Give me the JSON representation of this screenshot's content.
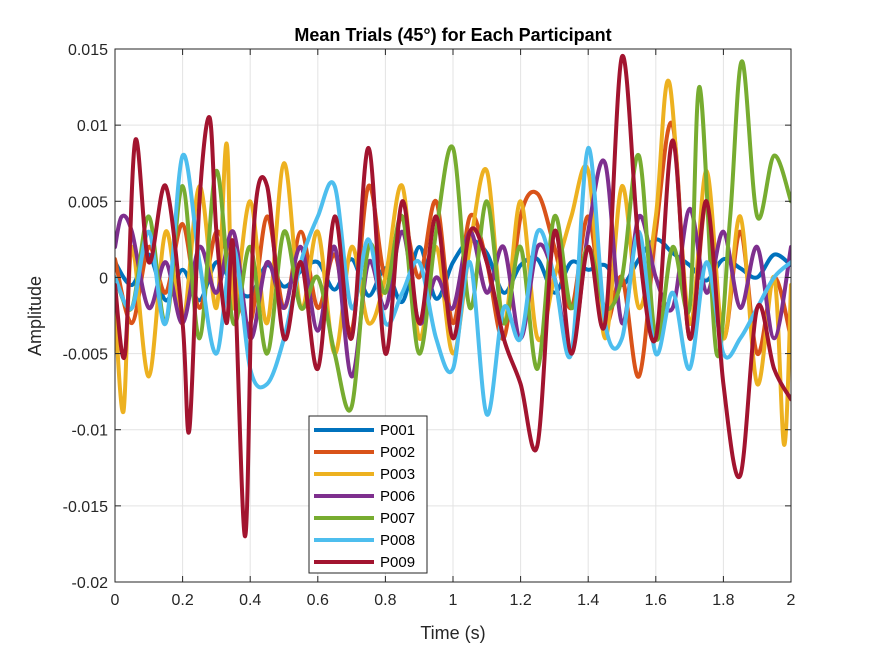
{
  "chart_data": {
    "type": "line",
    "title": "Mean Trials (45°) for Each Participant",
    "xlabel": "Time (s)",
    "ylabel": "Amplitude",
    "xlim": [
      0,
      2
    ],
    "ylim": [
      -0.02,
      0.015
    ],
    "xticks": [
      "0",
      "0.2",
      "0.4",
      "0.6",
      "0.8",
      "1",
      "1.2",
      "1.4",
      "1.6",
      "1.8",
      "2"
    ],
    "yticks": [
      "-0.02",
      "-0.015",
      "-0.01",
      "-0.005",
      "0",
      "0.005",
      "0.01",
      "0.015"
    ],
    "grid": true,
    "legend_position": "bottom-left",
    "series": [
      {
        "name": "P001",
        "color": "#0072BD",
        "points": [
          [
            0,
            0.001
          ],
          [
            0.05,
            -0.0005
          ],
          [
            0.1,
            0.0015
          ],
          [
            0.15,
            -0.0015
          ],
          [
            0.2,
            0.0005
          ],
          [
            0.25,
            -0.0015
          ],
          [
            0.3,
            0.001
          ],
          [
            0.35,
            -0.0005
          ],
          [
            0.4,
            -0.0012
          ],
          [
            0.45,
            0.0008
          ],
          [
            0.5,
            -0.0006
          ],
          [
            0.55,
            0.0004
          ],
          [
            0.6,
            0.001
          ],
          [
            0.65,
            -0.0008
          ],
          [
            0.7,
            0.0012
          ],
          [
            0.75,
            -0.0012
          ],
          [
            0.8,
            0.0006
          ],
          [
            0.85,
            -0.0016
          ],
          [
            0.9,
            0.002
          ],
          [
            0.95,
            -0.0014
          ],
          [
            1.0,
            0.001
          ],
          [
            1.05,
            0.0024
          ],
          [
            1.1,
            0.0016
          ],
          [
            1.15,
            -0.001
          ],
          [
            1.2,
            0.0008
          ],
          [
            1.25,
            0.0012
          ],
          [
            1.3,
            -0.001
          ],
          [
            1.35,
            0.001
          ],
          [
            1.4,
            0.0005
          ],
          [
            1.45,
            0.0008
          ],
          [
            1.5,
            -0.0005
          ],
          [
            1.55,
            0.0012
          ],
          [
            1.6,
            0.0025
          ],
          [
            1.65,
            0.0016
          ],
          [
            1.7,
            0.0008
          ],
          [
            1.75,
            -0.0002
          ],
          [
            1.8,
            0.0012
          ],
          [
            1.85,
            0.0006
          ],
          [
            1.9,
            0.0
          ],
          [
            1.95,
            0.0015
          ],
          [
            2.0,
            0.0008
          ]
        ]
      },
      {
        "name": "P002",
        "color": "#D95319",
        "points": [
          [
            0,
            0.0012
          ],
          [
            0.05,
            -0.003
          ],
          [
            0.1,
            0.002
          ],
          [
            0.15,
            -0.001
          ],
          [
            0.2,
            0.0035
          ],
          [
            0.25,
            -0.002
          ],
          [
            0.3,
            0.003
          ],
          [
            0.35,
            0.0
          ],
          [
            0.4,
            -0.003
          ],
          [
            0.45,
            0.004
          ],
          [
            0.5,
            -0.002
          ],
          [
            0.55,
            0.003
          ],
          [
            0.6,
            -0.002
          ],
          [
            0.65,
            0.0015
          ],
          [
            0.7,
            -0.0035
          ],
          [
            0.75,
            0.006
          ],
          [
            0.8,
            0.0
          ],
          [
            0.85,
            0.004
          ],
          [
            0.9,
            0.0
          ],
          [
            0.95,
            0.005
          ],
          [
            1.0,
            -0.003
          ],
          [
            1.05,
            0.004
          ],
          [
            1.1,
            0.001
          ],
          [
            1.15,
            -0.004
          ],
          [
            1.2,
            0.004
          ],
          [
            1.25,
            0.0055
          ],
          [
            1.3,
            0.002
          ],
          [
            1.35,
            -0.002
          ],
          [
            1.4,
            0.004
          ],
          [
            1.45,
            -0.003
          ],
          [
            1.5,
            0.0
          ],
          [
            1.55,
            -0.0065
          ],
          [
            1.6,
            0.003
          ],
          [
            1.65,
            0.01
          ],
          [
            1.7,
            -0.004
          ],
          [
            1.75,
            0.005
          ],
          [
            1.8,
            -0.004
          ],
          [
            1.85,
            0.003
          ],
          [
            1.9,
            -0.005
          ],
          [
            1.95,
            0.0
          ],
          [
            2.0,
            -0.004
          ]
        ]
      },
      {
        "name": "P003",
        "color": "#EDB120",
        "points": [
          [
            0,
            -0.002
          ],
          [
            0.025,
            -0.0088
          ],
          [
            0.05,
            0.002
          ],
          [
            0.1,
            -0.0065
          ],
          [
            0.15,
            0.003
          ],
          [
            0.2,
            -0.003
          ],
          [
            0.25,
            0.006
          ],
          [
            0.3,
            -0.002
          ],
          [
            0.33,
            0.0088
          ],
          [
            0.35,
            -0.002
          ],
          [
            0.4,
            0.005
          ],
          [
            0.45,
            -0.003
          ],
          [
            0.5,
            0.0075
          ],
          [
            0.55,
            -0.002
          ],
          [
            0.6,
            0.003
          ],
          [
            0.65,
            -0.005
          ],
          [
            0.7,
            0.002
          ],
          [
            0.75,
            -0.003
          ],
          [
            0.8,
            0.0
          ],
          [
            0.85,
            0.006
          ],
          [
            0.9,
            -0.004
          ],
          [
            0.95,
            0.002
          ],
          [
            1.0,
            -0.005
          ],
          [
            1.05,
            0.002
          ],
          [
            1.1,
            0.007
          ],
          [
            1.15,
            -0.003
          ],
          [
            1.2,
            0.005
          ],
          [
            1.25,
            -0.004
          ],
          [
            1.3,
            0.0
          ],
          [
            1.35,
            0.004
          ],
          [
            1.4,
            0.007
          ],
          [
            1.45,
            -0.004
          ],
          [
            1.5,
            0.006
          ],
          [
            1.55,
            -0.002
          ],
          [
            1.6,
            0.004
          ],
          [
            1.64,
            0.0128
          ],
          [
            1.7,
            -0.003
          ],
          [
            1.75,
            0.007
          ],
          [
            1.8,
            -0.004
          ],
          [
            1.85,
            0.004
          ],
          [
            1.9,
            -0.007
          ],
          [
            1.95,
            0.0
          ],
          [
            1.98,
            -0.011
          ],
          [
            2.0,
            -0.0005
          ]
        ]
      },
      {
        "name": "P006",
        "color": "#7E2F8E",
        "points": [
          [
            0,
            0.002
          ],
          [
            0.02,
            0.004
          ],
          [
            0.05,
            0.003
          ],
          [
            0.1,
            -0.002
          ],
          [
            0.15,
            0.001
          ],
          [
            0.2,
            -0.003
          ],
          [
            0.25,
            0.002
          ],
          [
            0.3,
            -0.001
          ],
          [
            0.35,
            0.003
          ],
          [
            0.4,
            -0.004
          ],
          [
            0.45,
            0.001
          ],
          [
            0.5,
            -0.002
          ],
          [
            0.55,
            0.002
          ],
          [
            0.6,
            -0.0035
          ],
          [
            0.65,
            0.002
          ],
          [
            0.7,
            -0.0065
          ],
          [
            0.75,
            0.001
          ],
          [
            0.8,
            -0.002
          ],
          [
            0.85,
            0.003
          ],
          [
            0.9,
            -0.003
          ],
          [
            0.95,
            0.0
          ],
          [
            1.0,
            -0.002
          ],
          [
            1.05,
            0.003
          ],
          [
            1.1,
            -0.001
          ],
          [
            1.15,
            0.002
          ],
          [
            1.2,
            -0.004
          ],
          [
            1.25,
            0.002
          ],
          [
            1.3,
            0.0
          ],
          [
            1.35,
            -0.005
          ],
          [
            1.4,
            0.003
          ],
          [
            1.45,
            0.0075
          ],
          [
            1.5,
            -0.003
          ],
          [
            1.55,
            0.004
          ],
          [
            1.6,
            0.0
          ],
          [
            1.65,
            -0.002
          ],
          [
            1.7,
            0.0045
          ],
          [
            1.75,
            -0.001
          ],
          [
            1.8,
            0.003
          ],
          [
            1.85,
            -0.002
          ],
          [
            1.9,
            0.002
          ],
          [
            1.95,
            -0.004
          ],
          [
            2.0,
            0.002
          ]
        ]
      },
      {
        "name": "P007",
        "color": "#77AC30",
        "points": [
          [
            0,
            0.0
          ],
          [
            0.05,
            -0.002
          ],
          [
            0.1,
            0.004
          ],
          [
            0.15,
            -0.003
          ],
          [
            0.2,
            0.006
          ],
          [
            0.25,
            -0.004
          ],
          [
            0.3,
            0.007
          ],
          [
            0.35,
            -0.003
          ],
          [
            0.4,
            0.002
          ],
          [
            0.45,
            -0.005
          ],
          [
            0.5,
            0.003
          ],
          [
            0.55,
            -0.002
          ],
          [
            0.6,
            0.0
          ],
          [
            0.65,
            -0.005
          ],
          [
            0.7,
            -0.0085
          ],
          [
            0.75,
            0.002
          ],
          [
            0.8,
            -0.001
          ],
          [
            0.85,
            0.004
          ],
          [
            0.9,
            -0.005
          ],
          [
            0.95,
            0.003
          ],
          [
            1.0,
            0.0085
          ],
          [
            1.05,
            -0.002
          ],
          [
            1.1,
            0.005
          ],
          [
            1.15,
            -0.003
          ],
          [
            1.2,
            0.002
          ],
          [
            1.25,
            -0.006
          ],
          [
            1.3,
            0.004
          ],
          [
            1.35,
            -0.002
          ],
          [
            1.4,
            0.002
          ],
          [
            1.45,
            -0.002
          ],
          [
            1.5,
            0.0
          ],
          [
            1.55,
            0.008
          ],
          [
            1.6,
            -0.004
          ],
          [
            1.65,
            0.002
          ],
          [
            1.7,
            -0.002
          ],
          [
            1.73,
            0.0125
          ],
          [
            1.78,
            -0.005
          ],
          [
            1.82,
            0.004
          ],
          [
            1.855,
            0.0142
          ],
          [
            1.9,
            0.004
          ],
          [
            1.95,
            0.008
          ],
          [
            2.0,
            0.005
          ]
        ]
      },
      {
        "name": "P008",
        "color": "#4DBEEE",
        "points": [
          [
            0,
            0.0
          ],
          [
            0.05,
            -0.002
          ],
          [
            0.1,
            0.003
          ],
          [
            0.15,
            -0.003
          ],
          [
            0.2,
            0.008
          ],
          [
            0.25,
            0.001
          ],
          [
            0.3,
            -0.005
          ],
          [
            0.35,
            0.002
          ],
          [
            0.4,
            -0.006
          ],
          [
            0.45,
            -0.007
          ],
          [
            0.5,
            -0.004
          ],
          [
            0.55,
            0.001
          ],
          [
            0.6,
            0.004
          ],
          [
            0.65,
            0.006
          ],
          [
            0.7,
            -0.002
          ],
          [
            0.75,
            0.0025
          ],
          [
            0.8,
            -0.003
          ],
          [
            0.85,
            -0.001
          ],
          [
            0.9,
            0.001
          ],
          [
            0.95,
            -0.004
          ],
          [
            1.0,
            -0.006
          ],
          [
            1.05,
            0.001
          ],
          [
            1.1,
            -0.009
          ],
          [
            1.15,
            -0.002
          ],
          [
            1.2,
            -0.004
          ],
          [
            1.25,
            0.003
          ],
          [
            1.3,
            0.0
          ],
          [
            1.35,
            -0.005
          ],
          [
            1.4,
            0.0085
          ],
          [
            1.45,
            -0.003
          ],
          [
            1.5,
            -0.004
          ],
          [
            1.55,
            0.003
          ],
          [
            1.6,
            -0.005
          ],
          [
            1.65,
            -0.001
          ],
          [
            1.7,
            -0.006
          ],
          [
            1.75,
            0.001
          ],
          [
            1.8,
            -0.005
          ],
          [
            1.85,
            -0.004
          ],
          [
            1.9,
            -0.002
          ],
          [
            1.95,
            0.0
          ],
          [
            2.0,
            0.001
          ]
        ]
      },
      {
        "name": "P009",
        "color": "#A2142F",
        "points": [
          [
            0,
            -0.0005
          ],
          [
            0.03,
            -0.005
          ],
          [
            0.06,
            0.009
          ],
          [
            0.1,
            0.001
          ],
          [
            0.15,
            0.006
          ],
          [
            0.2,
            -0.003
          ],
          [
            0.22,
            -0.01
          ],
          [
            0.25,
            0.005
          ],
          [
            0.28,
            0.0105
          ],
          [
            0.3,
            0.003
          ],
          [
            0.33,
            -0.003
          ],
          [
            0.35,
            0.002
          ],
          [
            0.385,
            -0.017
          ],
          [
            0.41,
            0.003
          ],
          [
            0.45,
            0.006
          ],
          [
            0.5,
            -0.004
          ],
          [
            0.55,
            0.001
          ],
          [
            0.6,
            -0.006
          ],
          [
            0.65,
            0.004
          ],
          [
            0.7,
            -0.004
          ],
          [
            0.75,
            0.0085
          ],
          [
            0.8,
            -0.005
          ],
          [
            0.85,
            0.005
          ],
          [
            0.9,
            -0.003
          ],
          [
            0.95,
            0.004
          ],
          [
            1.0,
            -0.004
          ],
          [
            1.05,
            0.003
          ],
          [
            1.1,
            0.001
          ],
          [
            1.15,
            -0.004
          ],
          [
            1.2,
            -0.007
          ],
          [
            1.25,
            -0.011
          ],
          [
            1.3,
            0.003
          ],
          [
            1.35,
            -0.005
          ],
          [
            1.4,
            0.002
          ],
          [
            1.45,
            -0.003
          ],
          [
            1.5,
            0.0145
          ],
          [
            1.55,
            0.002
          ],
          [
            1.6,
            -0.004
          ],
          [
            1.65,
            0.009
          ],
          [
            1.7,
            -0.004
          ],
          [
            1.75,
            0.005
          ],
          [
            1.8,
            -0.007
          ],
          [
            1.85,
            -0.013
          ],
          [
            1.9,
            -0.002
          ],
          [
            1.95,
            -0.006
          ],
          [
            2.0,
            -0.008
          ]
        ]
      }
    ]
  }
}
